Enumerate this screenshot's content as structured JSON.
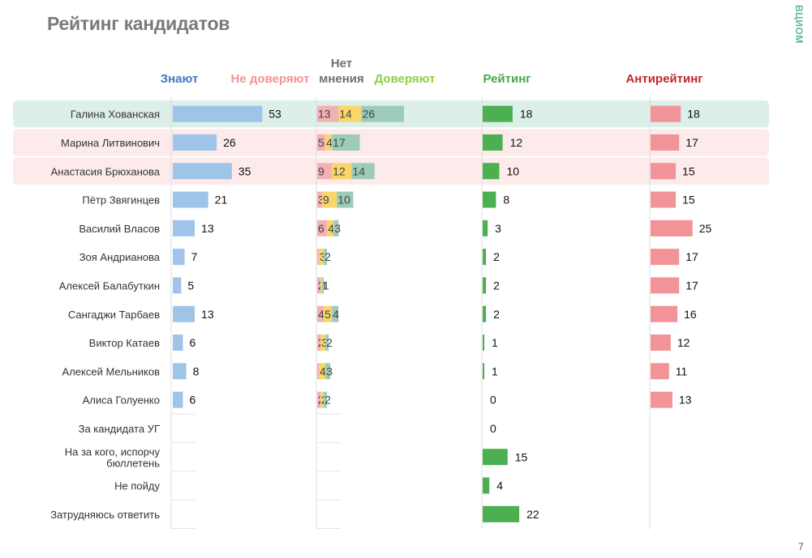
{
  "slide": {
    "title": "Рейтинг кандидатов",
    "brand": "ВЦИОМ",
    "page_number": "7"
  },
  "colors": {
    "know": "#9ec4e8",
    "distrust": "#f4b1b3",
    "no_opinion": "#f9d66a",
    "trust": "#9ccbb9",
    "rating": "#4caf50",
    "antirating": "#f29397",
    "row_highlight_green": "#dcefe8",
    "row_highlight_pink": "#fdeaea",
    "header_know": "#3b7bbf",
    "header_distrust": "#f29397",
    "header_no_opinion": "#707070",
    "header_trust": "#8fcf4a",
    "header_rating": "#4aa84e",
    "header_antirating": "#c0272d"
  },
  "chart_data": {
    "type": "bar",
    "title": "Рейтинг кандидатов",
    "headers": {
      "know": "Знают",
      "distrust": "Не доверяют",
      "no_opinion_line1": "Нет",
      "no_opinion_line2": "мнения",
      "trust": "Доверяют",
      "rating": "Рейтинг",
      "antirating": "Антирейтинг"
    },
    "categories": [
      "Галина Хованская",
      "Марина Литвинович",
      "Анастасия Брюханова",
      "Пётр Звягинцев",
      "Василий Власов",
      "Зоя Андрианова",
      "Алексей Балабуткин",
      "Сангаджи Тарбаев",
      "Виктор Катаев",
      "Алексей Мельников",
      "Алиса Голуенко",
      "За кандидата УГ",
      "На за кого, испорчу бюллетень",
      "Не пойду",
      "Затрудняюсь ответить"
    ],
    "highlight": [
      "green",
      "pink",
      "pink",
      null,
      null,
      null,
      null,
      null,
      null,
      null,
      null,
      null,
      null,
      null,
      null
    ],
    "series": [
      {
        "name": "Знают",
        "values": [
          53,
          26,
          35,
          21,
          13,
          7,
          5,
          13,
          6,
          8,
          6,
          null,
          null,
          null,
          null
        ]
      },
      {
        "name": "Не доверяют",
        "values": [
          13,
          5,
          9,
          3,
          6,
          1,
          2,
          4,
          2,
          1,
          2,
          null,
          null,
          null,
          null
        ]
      },
      {
        "name": "Нет мнения",
        "values": [
          14,
          4,
          12,
          9,
          4,
          3,
          1,
          5,
          3,
          4,
          2,
          null,
          null,
          null,
          null
        ]
      },
      {
        "name": "Доверяют",
        "values": [
          26,
          17,
          14,
          10,
          3,
          2,
          1,
          4,
          2,
          3,
          2,
          null,
          null,
          null,
          null
        ]
      },
      {
        "name": "Рейтинг",
        "values": [
          18,
          12,
          10,
          8,
          3,
          2,
          2,
          2,
          1,
          1,
          0,
          0,
          15,
          4,
          22
        ]
      },
      {
        "name": "Антирейтинг",
        "values": [
          18,
          17,
          15,
          15,
          25,
          17,
          17,
          16,
          12,
          11,
          13,
          null,
          null,
          null,
          null
        ]
      }
    ]
  }
}
